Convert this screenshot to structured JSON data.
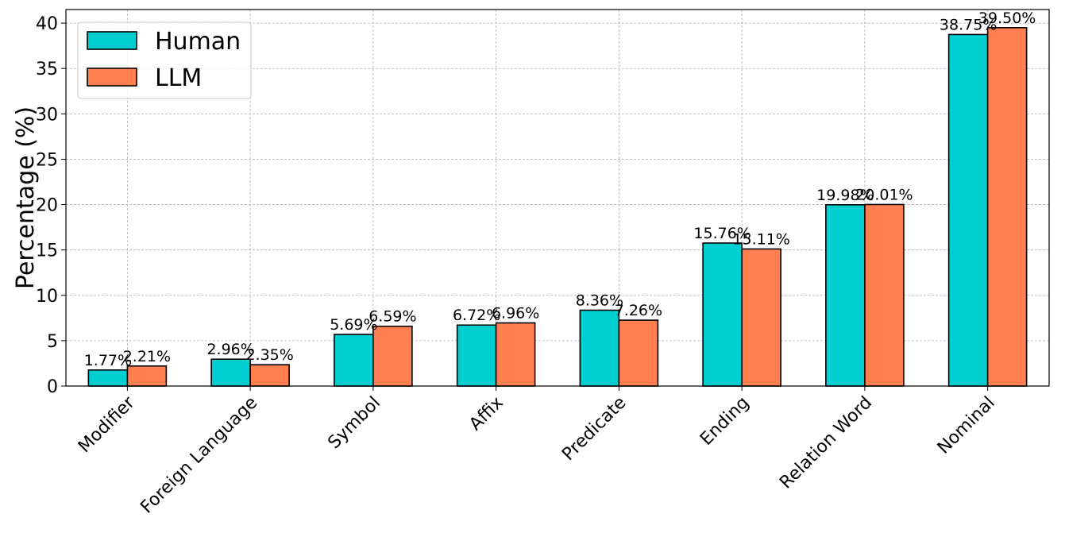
{
  "chart_data": {
    "type": "bar",
    "title": "",
    "xlabel": "",
    "ylabel": "Percentage (%)",
    "ylim": [
      0,
      41.5
    ],
    "yticks": [
      0,
      5,
      10,
      15,
      20,
      25,
      30,
      35,
      40
    ],
    "grid": true,
    "legend_position": "top-left",
    "categories": [
      "Modifier",
      "Foreign Language",
      "Symbol",
      "Affix",
      "Predicate",
      "Ending",
      "Relation Word",
      "Nominal"
    ],
    "series": [
      {
        "name": "Human",
        "color": "#00CED1",
        "values": [
          1.77,
          2.96,
          5.69,
          6.72,
          8.36,
          15.76,
          19.98,
          38.75
        ],
        "labels": [
          "1.77%",
          "2.96%",
          "5.69%",
          "6.72%",
          "8.36%",
          "15.76%",
          "19.98%",
          "38.75%"
        ]
      },
      {
        "name": "LLM",
        "color": "#FF7F50",
        "values": [
          2.21,
          2.35,
          6.59,
          6.96,
          7.26,
          15.11,
          20.01,
          39.5
        ],
        "labels": [
          "2.21%",
          "2.35%",
          "6.59%",
          "6.96%",
          "7.26%",
          "15.11%",
          "20.01%",
          "39.50%"
        ]
      }
    ]
  }
}
